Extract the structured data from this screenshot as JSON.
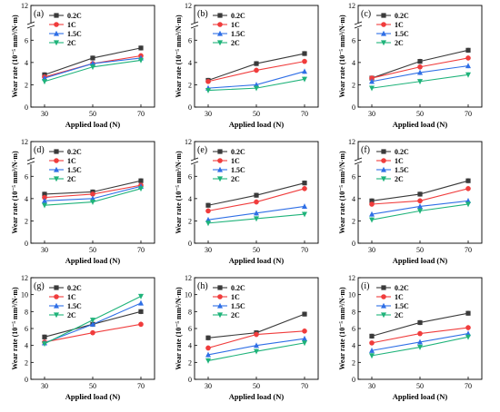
{
  "figure": {
    "series_names": [
      "0.2C",
      "1C",
      "1.5C",
      "2C"
    ],
    "series_colors": [
      "#3a3a3a",
      "#f03c3c",
      "#2f6fe6",
      "#1fb37a"
    ],
    "x_ticks": [
      "30",
      "50",
      "70"
    ],
    "xlabel": "Applied load (N)",
    "ylabel": "Wear rate (10⁻⁵ mm³/N·m)"
  },
  "chart_data": [
    {
      "type": "line",
      "panel_label": "(a)",
      "x": [
        30,
        50,
        70
      ],
      "ylim": [
        0,
        12
      ],
      "y_ticks": [
        "0",
        "2",
        "4",
        "6",
        "12"
      ],
      "axis_break": [
        7,
        11.5
      ],
      "xlabel": "Applied load (N)",
      "ylabel": "Wear rate (10⁻⁵ mm³/N·m)",
      "series": [
        {
          "name": "0.2C",
          "values": [
            2.9,
            4.4,
            5.3
          ]
        },
        {
          "name": "1C",
          "values": [
            2.7,
            3.9,
            4.6
          ]
        },
        {
          "name": "1.5C",
          "values": [
            2.6,
            3.9,
            4.4
          ]
        },
        {
          "name": "2C",
          "values": [
            2.3,
            3.6,
            4.2
          ]
        }
      ]
    },
    {
      "type": "line",
      "panel_label": "(b)",
      "x": [
        30,
        50,
        70
      ],
      "ylim": [
        0,
        12
      ],
      "y_ticks": [
        "0",
        "2",
        "4",
        "6",
        "12"
      ],
      "axis_break": [
        7,
        11.5
      ],
      "xlabel": "Applied load (N)",
      "ylabel": "Wear rate (10⁻⁵ mm³/N·m)",
      "series": [
        {
          "name": "0.2C",
          "values": [
            2.4,
            3.9,
            4.8
          ]
        },
        {
          "name": "1C",
          "values": [
            2.3,
            3.3,
            4.1
          ]
        },
        {
          "name": "1.5C",
          "values": [
            1.7,
            2.0,
            3.2
          ]
        },
        {
          "name": "2C",
          "values": [
            1.5,
            1.7,
            2.5
          ]
        }
      ]
    },
    {
      "type": "line",
      "panel_label": "(c)",
      "x": [
        30,
        50,
        70
      ],
      "ylim": [
        0,
        12
      ],
      "y_ticks": [
        "0",
        "2",
        "4",
        "6",
        "12"
      ],
      "axis_break": [
        7,
        11.5
      ],
      "xlabel": "Applied load (N)",
      "ylabel": "Wear rate (10⁻⁵ mm³/N·m)",
      "series": [
        {
          "name": "0.2C",
          "values": [
            2.6,
            4.1,
            5.1
          ]
        },
        {
          "name": "1C",
          "values": [
            2.6,
            3.6,
            4.4
          ]
        },
        {
          "name": "1.5C",
          "values": [
            2.3,
            3.1,
            3.7
          ]
        },
        {
          "name": "2C",
          "values": [
            1.7,
            2.3,
            2.9
          ]
        }
      ]
    },
    {
      "type": "line",
      "panel_label": "(d)",
      "x": [
        30,
        50,
        70
      ],
      "ylim": [
        0,
        12
      ],
      "y_ticks": [
        "0",
        "2",
        "4",
        "6",
        "12"
      ],
      "axis_break": [
        7,
        11.5
      ],
      "xlabel": "Applied load (N)",
      "ylabel": "Wear rate (10⁻⁵ mm³/N·m)",
      "series": [
        {
          "name": "0.2C",
          "values": [
            4.4,
            4.6,
            5.6
          ]
        },
        {
          "name": "1C",
          "values": [
            4.1,
            4.4,
            5.2
          ]
        },
        {
          "name": "1.5C",
          "values": [
            3.8,
            4.0,
            5.1
          ]
        },
        {
          "name": "2C",
          "values": [
            3.4,
            3.7,
            4.9
          ]
        }
      ]
    },
    {
      "type": "line",
      "panel_label": "(e)",
      "x": [
        30,
        50,
        70
      ],
      "ylim": [
        0,
        12
      ],
      "y_ticks": [
        "0",
        "2",
        "4",
        "6",
        "12"
      ],
      "axis_break": [
        7,
        11.5
      ],
      "xlabel": "Applied load (N)",
      "ylabel": "Wear rate (10⁻⁵ mm³/N·m)",
      "series": [
        {
          "name": "0.2C",
          "values": [
            3.4,
            4.3,
            5.4
          ]
        },
        {
          "name": "1C",
          "values": [
            2.9,
            3.7,
            4.9
          ]
        },
        {
          "name": "1.5C",
          "values": [
            2.1,
            2.7,
            3.3
          ]
        },
        {
          "name": "2C",
          "values": [
            1.8,
            2.2,
            2.6
          ]
        }
      ]
    },
    {
      "type": "line",
      "panel_label": "(f)",
      "x": [
        30,
        50,
        70
      ],
      "ylim": [
        0,
        12
      ],
      "y_ticks": [
        "0",
        "2",
        "4",
        "6",
        "12"
      ],
      "axis_break": [
        7,
        11.5
      ],
      "xlabel": "Applied load (N)",
      "ylabel": "Wear rate (10⁻⁵ mm³/N·m)",
      "series": [
        {
          "name": "0.2C",
          "values": [
            3.8,
            4.4,
            5.6
          ]
        },
        {
          "name": "1C",
          "values": [
            3.5,
            3.8,
            4.9
          ]
        },
        {
          "name": "1.5C",
          "values": [
            2.6,
            3.3,
            3.8
          ]
        },
        {
          "name": "2C",
          "values": [
            2.1,
            2.9,
            3.5
          ]
        }
      ]
    },
    {
      "type": "line",
      "panel_label": "(g)",
      "x": [
        30,
        50,
        70
      ],
      "ylim": [
        0,
        12
      ],
      "y_ticks": [
        "0",
        "2",
        "4",
        "6",
        "8",
        "10",
        "12"
      ],
      "xlabel": "Applied load (N)",
      "ylabel": "Wear rate (10⁻⁵ mm³/N·m)",
      "series": [
        {
          "name": "0.2C",
          "values": [
            5.0,
            6.5,
            8.0
          ]
        },
        {
          "name": "1C",
          "values": [
            4.4,
            5.5,
            6.5
          ]
        },
        {
          "name": "1.5C",
          "values": [
            4.3,
            6.5,
            9.0
          ]
        },
        {
          "name": "2C",
          "values": [
            4.2,
            7.0,
            9.8
          ]
        }
      ]
    },
    {
      "type": "line",
      "panel_label": "(h)",
      "x": [
        30,
        50,
        70
      ],
      "ylim": [
        0,
        12
      ],
      "y_ticks": [
        "0",
        "2",
        "4",
        "6",
        "8",
        "10",
        "12"
      ],
      "xlabel": "Applied load (N)",
      "ylabel": "Wear rate (10⁻⁵ mm³/N·m)",
      "series": [
        {
          "name": "0.2C",
          "values": [
            4.9,
            5.5,
            7.7
          ]
        },
        {
          "name": "1C",
          "values": [
            3.7,
            5.3,
            5.7
          ]
        },
        {
          "name": "1.5C",
          "values": [
            2.9,
            4.0,
            4.8
          ]
        },
        {
          "name": "2C",
          "values": [
            2.2,
            3.3,
            4.3
          ]
        }
      ]
    },
    {
      "type": "line",
      "panel_label": "(i)",
      "x": [
        30,
        50,
        70
      ],
      "ylim": [
        0,
        12
      ],
      "y_ticks": [
        "0",
        "2",
        "4",
        "6",
        "8",
        "10",
        "12"
      ],
      "xlabel": "Applied load (N)",
      "ylabel": "Wear rate (10⁻⁵ mm³/N·m)",
      "series": [
        {
          "name": "0.2C",
          "values": [
            5.1,
            6.7,
            7.8
          ]
        },
        {
          "name": "1C",
          "values": [
            4.3,
            5.4,
            6.1
          ]
        },
        {
          "name": "1.5C",
          "values": [
            3.4,
            4.4,
            5.4
          ]
        },
        {
          "name": "2C",
          "values": [
            2.8,
            3.8,
            5.0
          ]
        }
      ]
    }
  ]
}
